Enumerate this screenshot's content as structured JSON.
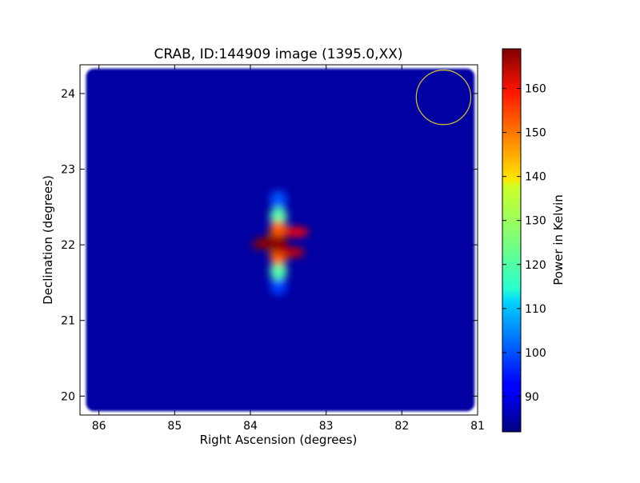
{
  "chart_data": {
    "type": "heatmap",
    "title": "CRAB, ID:144909 image (1395.0,XX)",
    "xlabel": "Right Ascension (degrees)",
    "ylabel": "Declination (degrees)",
    "xlim": [
      86.25,
      81.0
    ],
    "ylim": [
      19.75,
      24.38
    ],
    "x_ticks": [
      86,
      85,
      84,
      83,
      82,
      81
    ],
    "y_ticks": [
      20,
      21,
      22,
      23,
      24
    ],
    "x_tick_labels": [
      "86",
      "85",
      "84",
      "83",
      "82",
      "81"
    ],
    "y_tick_labels": [
      "20",
      "21",
      "22",
      "23",
      "24"
    ],
    "colorbar": {
      "label": "Power in Kelvin",
      "range": [
        82,
        169
      ],
      "ticks": [
        90,
        100,
        110,
        120,
        130,
        140,
        150,
        160
      ],
      "tick_labels": [
        "90",
        "100",
        "110",
        "120",
        "130",
        "140",
        "150",
        "160"
      ],
      "colormap": "jet"
    },
    "background_level": 85,
    "source": {
      "ra": 83.63,
      "dec": 22.01,
      "peak": 168
    },
    "lobes": [
      {
        "ra": 83.63,
        "dec": 22.6,
        "value": 100
      },
      {
        "ra": 83.63,
        "dec": 22.38,
        "value": 122
      },
      {
        "ra": 83.63,
        "dec": 22.2,
        "value": 150
      },
      {
        "ra": 83.63,
        "dec": 22.01,
        "value": 168
      },
      {
        "ra": 83.63,
        "dec": 21.85,
        "value": 150
      },
      {
        "ra": 83.63,
        "dec": 21.65,
        "value": 122
      },
      {
        "ra": 83.63,
        "dec": 21.45,
        "value": 98
      }
    ],
    "beam_marker": {
      "ra": 81.45,
      "dec": 23.95,
      "radius_deg": 0.36,
      "color": "#d4c62b"
    },
    "grid": false
  }
}
